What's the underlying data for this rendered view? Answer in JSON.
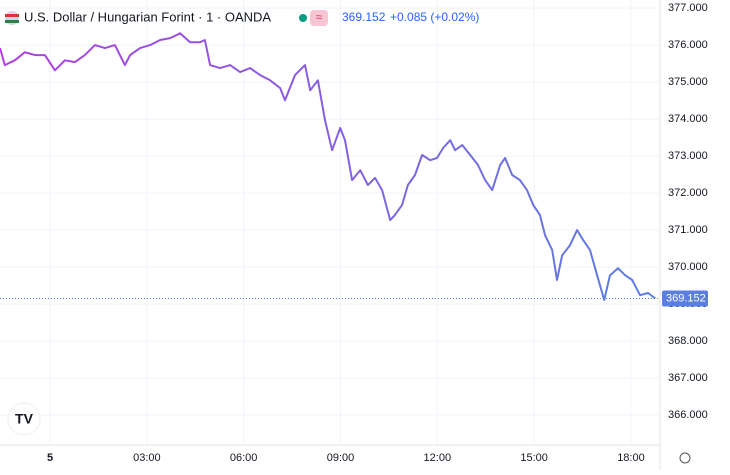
{
  "chart_data": {
    "type": "line",
    "title": "U.S. Dollar / Hungarian Forint · 1 · OANDA",
    "change": "+0.085 (+0.02%)",
    "x": [
      -1.55,
      -1.4,
      -1.09,
      -0.78,
      -0.47,
      -0.16,
      0.15,
      0.46,
      0.77,
      1.08,
      1.39,
      1.7,
      2.01,
      2.32,
      2.48,
      2.79,
      3.1,
      3.41,
      3.72,
      4.03,
      4.34,
      4.65,
      4.8,
      4.96,
      5.27,
      5.58,
      5.89,
      6.2,
      6.51,
      6.82,
      7.13,
      7.28,
      7.59,
      7.9,
      8.06,
      8.3,
      8.52,
      8.74,
      8.99,
      9.14,
      9.36,
      9.61,
      9.85,
      10.07,
      10.29,
      10.54,
      10.69,
      10.91,
      11.09,
      11.31,
      11.53,
      11.78,
      11.99,
      12.18,
      12.4,
      12.55,
      12.77,
      13.02,
      13.26,
      13.48,
      13.7,
      13.95,
      14.1,
      14.32,
      14.56,
      14.78,
      14.97,
      15.18,
      15.34,
      15.56,
      15.71,
      15.87,
      16.11,
      16.33,
      16.52,
      16.73,
      16.95,
      17.17,
      17.35,
      17.6,
      17.82,
      18.04,
      18.28,
      18.53,
      18.75
    ],
    "series": [
      {
        "gradient": [
          "#b23ee0",
          "#5a80e0"
        ],
        "values": [
          375.92,
          375.46,
          375.59,
          375.81,
          375.73,
          375.73,
          375.32,
          375.59,
          375.54,
          375.73,
          376.0,
          375.92,
          376.0,
          375.46,
          375.73,
          375.92,
          376.0,
          376.14,
          376.19,
          376.32,
          376.08,
          376.08,
          376.14,
          375.46,
          375.38,
          375.46,
          375.27,
          375.38,
          375.19,
          375.05,
          374.84,
          374.51,
          375.19,
          375.46,
          374.78,
          375.05,
          373.97,
          373.16,
          373.76,
          373.43,
          372.35,
          372.62,
          372.22,
          372.41,
          372.08,
          371.27,
          371.41,
          371.68,
          372.22,
          372.49,
          373.03,
          372.89,
          372.95,
          373.22,
          373.43,
          373.16,
          373.3,
          373.03,
          372.76,
          372.35,
          372.08,
          372.76,
          372.95,
          372.49,
          372.35,
          372.08,
          371.68,
          371.41,
          370.86,
          370.46,
          369.65,
          370.32,
          370.59,
          371.0,
          370.73,
          370.46,
          369.78,
          369.11,
          369.78,
          369.97,
          369.78,
          369.65,
          369.24,
          369.3,
          369.152
        ]
      }
    ],
    "xlim": [
      -1.55,
      18.9
    ],
    "xticks": [
      {
        "value": 0,
        "label": "5"
      },
      {
        "value": 3,
        "label": "03:00"
      },
      {
        "value": 6,
        "label": "06:00"
      },
      {
        "value": 9,
        "label": "09:00"
      },
      {
        "value": 12,
        "label": "12:00"
      },
      {
        "value": 15,
        "label": "15:00"
      },
      {
        "value": 18,
        "label": "18:00"
      }
    ],
    "ylim": [
      365.19,
      377.22
    ],
    "yticks": [
      {
        "value": 377,
        "label": "377.000"
      },
      {
        "value": 376,
        "label": "376.000"
      },
      {
        "value": 375,
        "label": "375.000"
      },
      {
        "value": 374,
        "label": "374.000"
      },
      {
        "value": 373,
        "label": "373.000"
      },
      {
        "value": 372,
        "label": "372.000"
      },
      {
        "value": 371,
        "label": "371.000"
      },
      {
        "value": 370,
        "label": "370.000"
      },
      {
        "value": 369,
        "label": "369.000"
      },
      {
        "value": 368,
        "label": "368.000"
      },
      {
        "value": 367,
        "label": "367.000"
      },
      {
        "value": 366,
        "label": "366.000"
      }
    ],
    "grid": true
  }
}
